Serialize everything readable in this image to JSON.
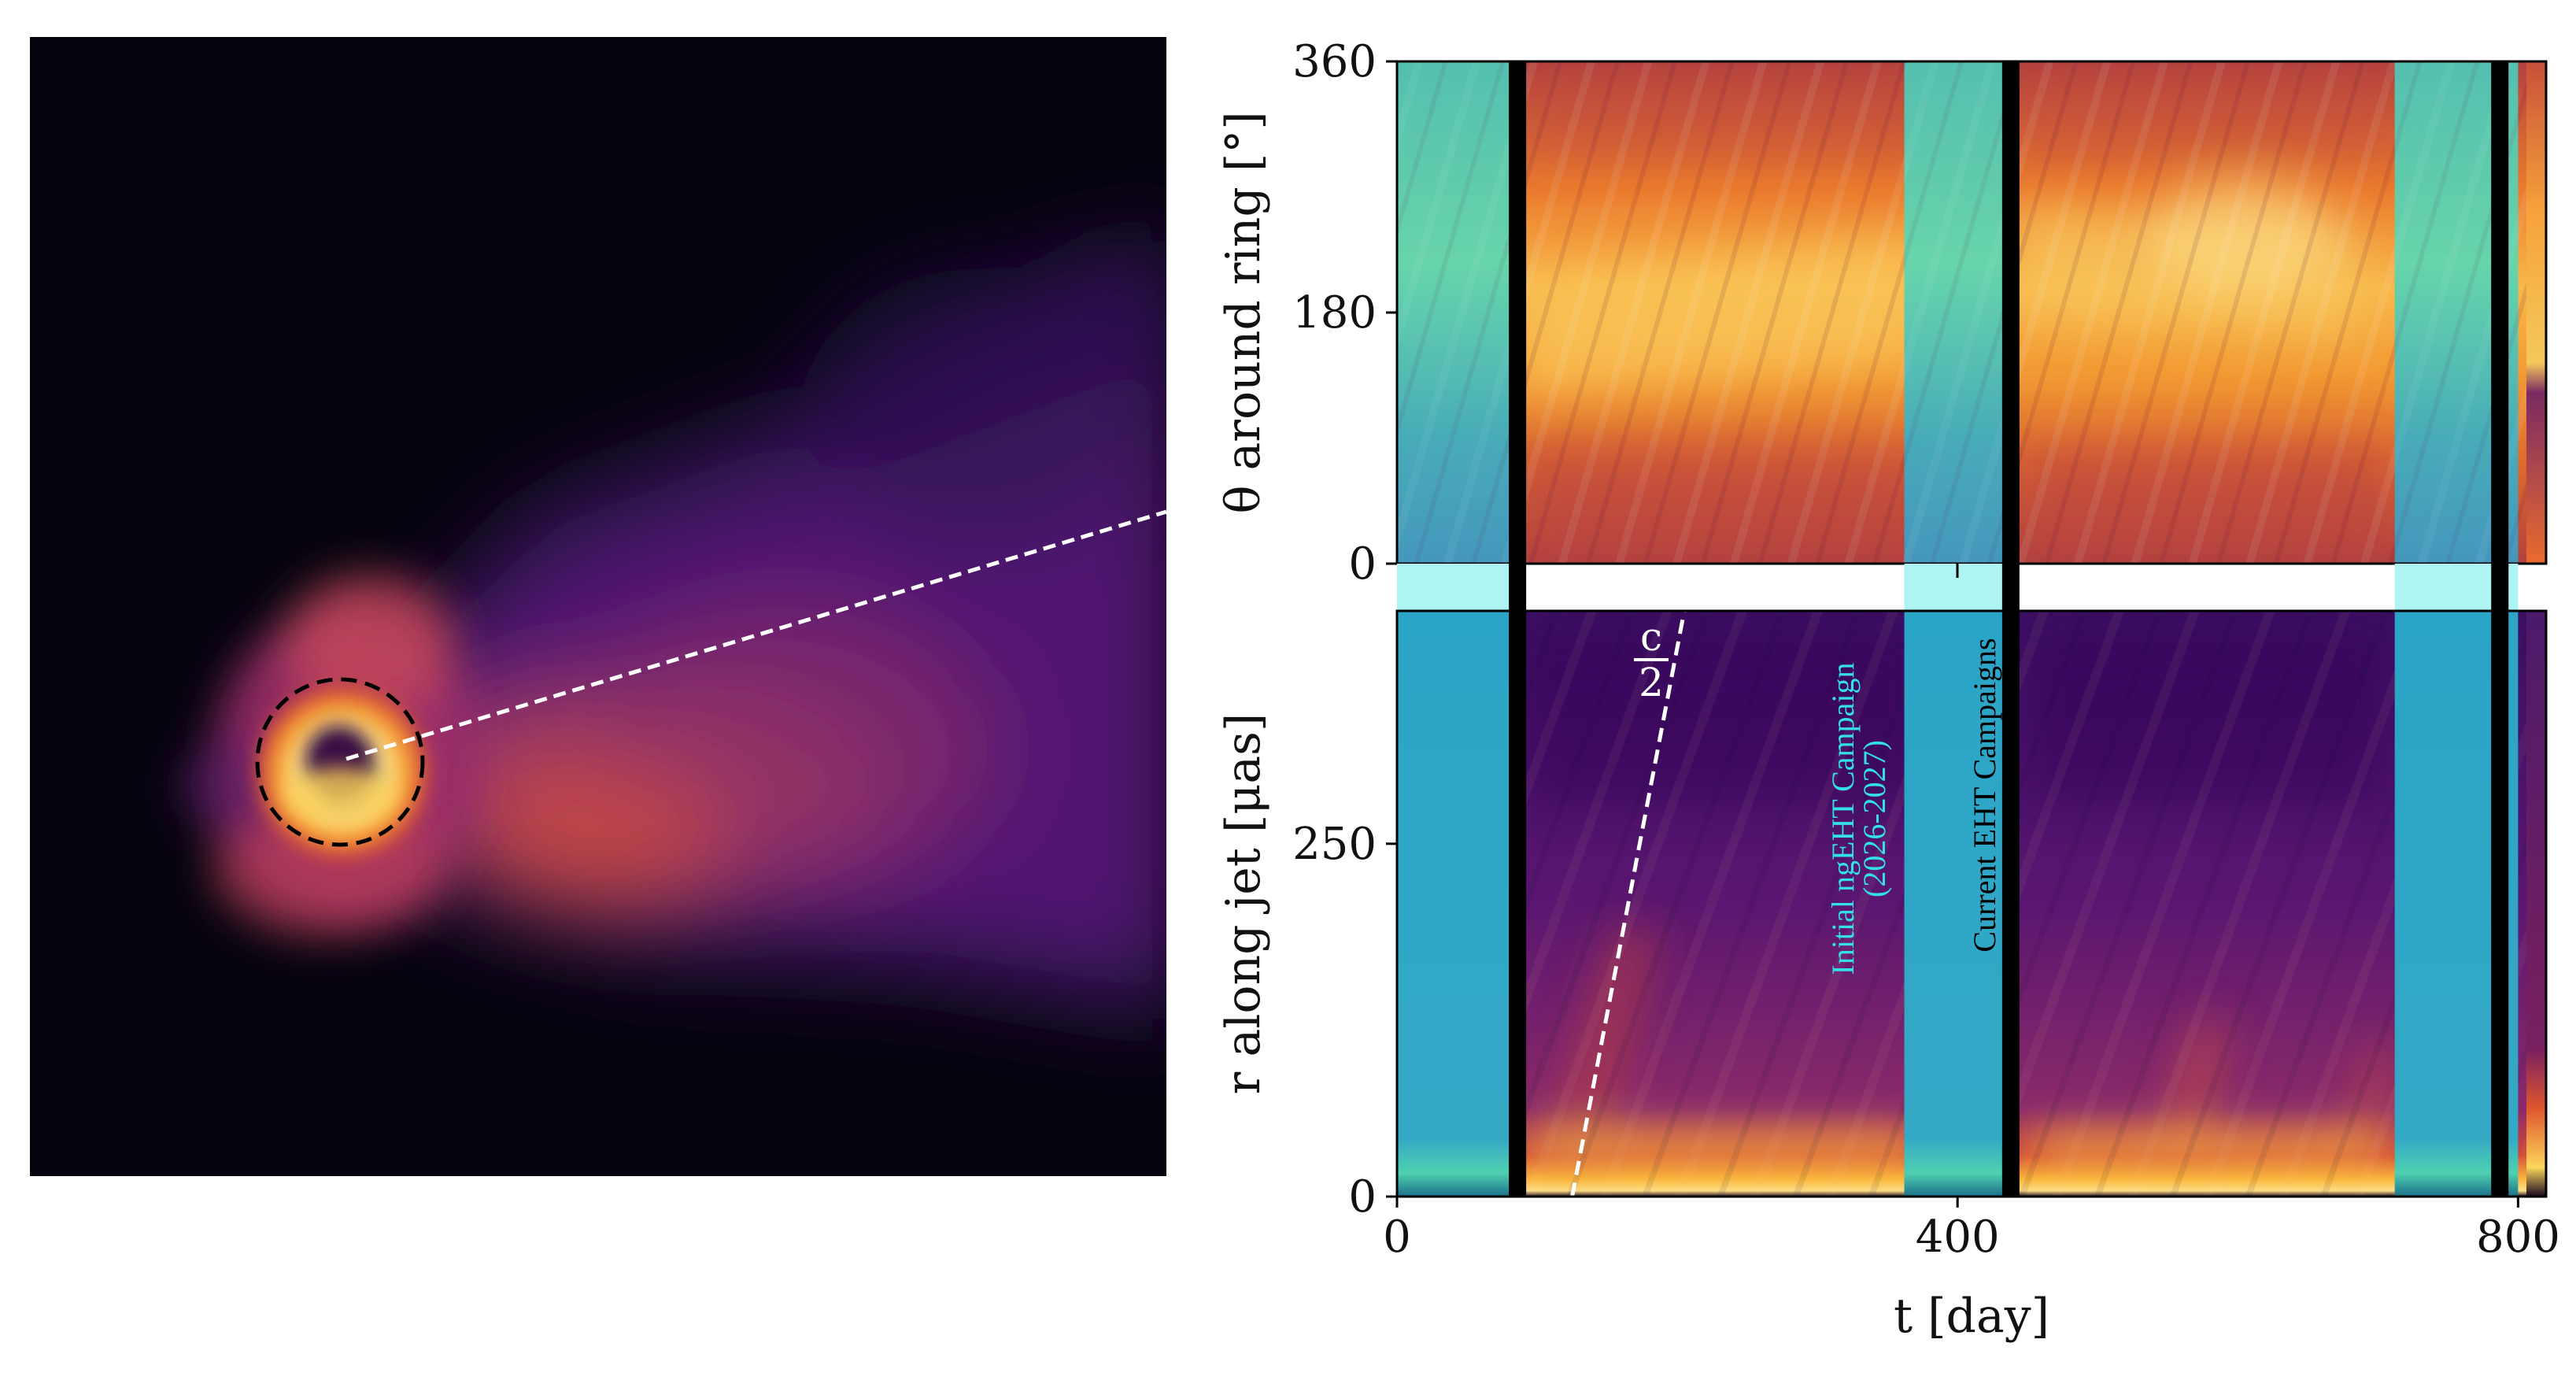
{
  "colors": {
    "night_background": "#05030e",
    "jet_mid": "#5a1a7a",
    "jet_bright": "#e0542f",
    "ring_hot": "#fcd25a",
    "annotation_cyan": "#33e0e8",
    "gap_cyan": "#aef4f2",
    "campaign_black": "#000000"
  },
  "annotations": {
    "speed_numerator": "c",
    "speed_denominator": "2",
    "initial_campaign_line1": "Initial ngEHT Campaign",
    "initial_campaign_line2": "(2026-2027)",
    "current_campaign": "Current EHT Campaigns"
  },
  "chart_data": [
    {
      "type": "image",
      "description": "",
      "overlays": [
        "dashed-circle",
        "dashed-line"
      ]
    },
    {
      "type": "heatmap",
      "xlabel": "",
      "ylabel": "θ around ring [°]",
      "xlim": [
        0,
        820
      ],
      "ylim": [
        0,
        360
      ],
      "yticks": [
        "0",
        "180",
        "360"
      ],
      "cyan_windows": [
        [
          0,
          80
        ],
        [
          362,
          435
        ],
        [
          712,
          800
        ]
      ],
      "campaign_lines": [
        86,
        438,
        787
      ],
      "band_angle_deg": [
        180,
        155
      ],
      "band_angle_t": [
        100,
        720
      ]
    },
    {
      "type": "heatmap",
      "xlabel": "t [day]",
      "ylabel": "r along jet [μas]",
      "xlim": [
        0,
        820
      ],
      "ylim": [
        0,
        415
      ],
      "xticks": [
        "0",
        "400",
        "800"
      ],
      "yticks": [
        "0",
        "250"
      ],
      "cyan_windows": [
        [
          0,
          80
        ],
        [
          362,
          435
        ],
        [
          712,
          800
        ]
      ],
      "campaign_lines": [
        86,
        438,
        787
      ],
      "speed_line": {
        "t": [
          125,
          205
        ],
        "r": [
          0,
          415
        ]
      }
    }
  ]
}
